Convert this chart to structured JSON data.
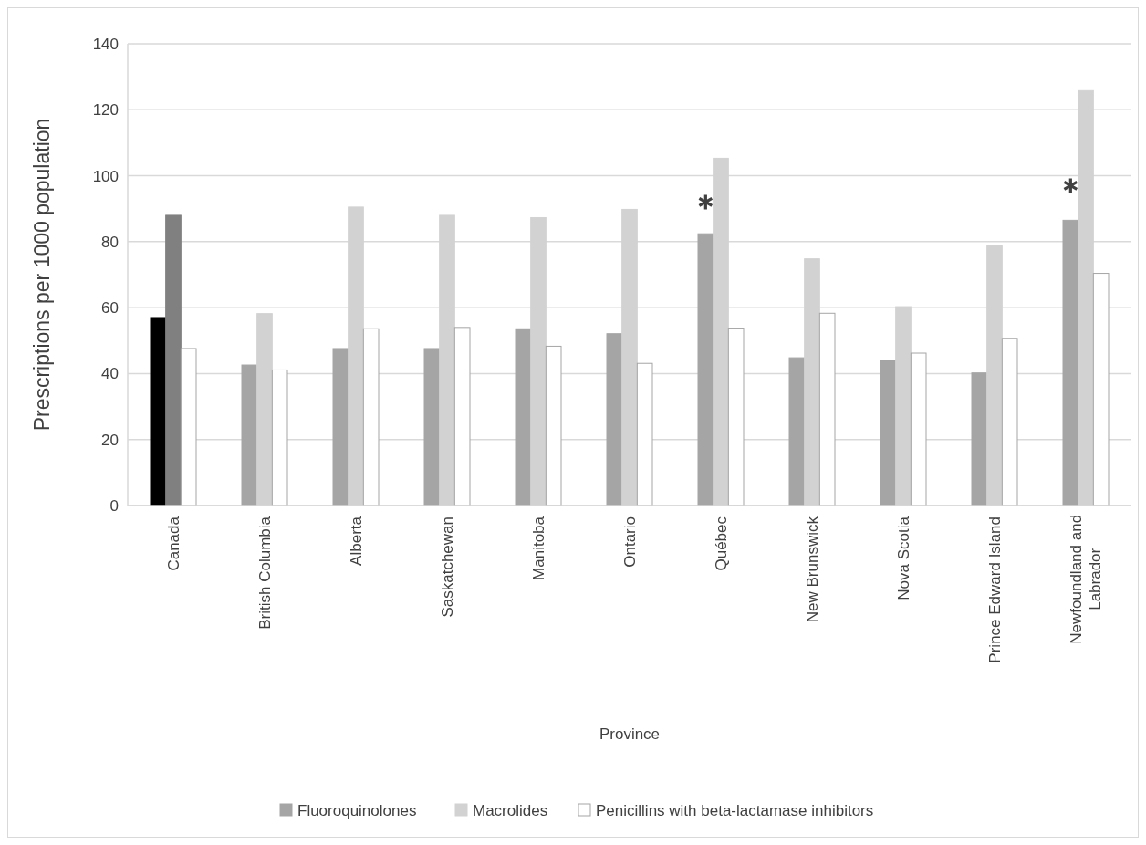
{
  "chart_data": {
    "type": "bar",
    "xlabel": "Province",
    "ylabel": "Prescriptions per 1000 population",
    "categories": [
      "Canada",
      "British Columbia",
      "Alberta",
      "Saskatchewan",
      "Manitoba",
      "Ontario",
      "Québec",
      "New Brunswick",
      "Nova Scotia",
      "Prince Edward Island",
      "Newfoundland and Labrador"
    ],
    "series": [
      {
        "name": "Fluoroquinolones",
        "color": "#a5a5a5",
        "colors": [
          "#000000",
          "#a5a5a5",
          "#a5a5a5",
          "#a5a5a5",
          "#a5a5a5",
          "#a5a5a5",
          "#a5a5a5",
          "#a5a5a5",
          "#a5a5a5",
          "#a5a5a5",
          "#a5a5a5"
        ],
        "values": [
          57.0,
          42.6,
          47.6,
          47.6,
          53.6,
          52.1,
          82.4,
          44.8,
          44.0,
          40.2,
          86.5
        ]
      },
      {
        "name": "Macrolides",
        "color": "#d2d2d2",
        "colors": [
          "#808080",
          "#d2d2d2",
          "#d2d2d2",
          "#d2d2d2",
          "#d2d2d2",
          "#d2d2d2",
          "#d2d2d2",
          "#d2d2d2",
          "#d2d2d2",
          "#d2d2d2",
          "#d2d2d2"
        ],
        "values": [
          88.0,
          58.2,
          90.5,
          88.0,
          87.3,
          89.8,
          105.3,
          74.8,
          60.3,
          78.7,
          125.8
        ]
      },
      {
        "name": "Penicillins with beta-lactamase inhibitors",
        "color": "#ffffff",
        "values": [
          47.6,
          41.1,
          53.6,
          54.0,
          48.3,
          43.1,
          53.8,
          58.3,
          46.2,
          50.7,
          70.4
        ]
      },
      {
        "type": "scatter",
        "marker": "cross",
        "color": "#404040",
        "x": [
          "Québec",
          "Newfoundland and Labrador"
        ],
        "values": [
          92,
          97
        ]
      }
    ],
    "ylim": [
      0,
      140
    ],
    "yticks": [
      0,
      20,
      40,
      60,
      80,
      100,
      120,
      140
    ],
    "grid": "y",
    "legend": "bottom"
  }
}
